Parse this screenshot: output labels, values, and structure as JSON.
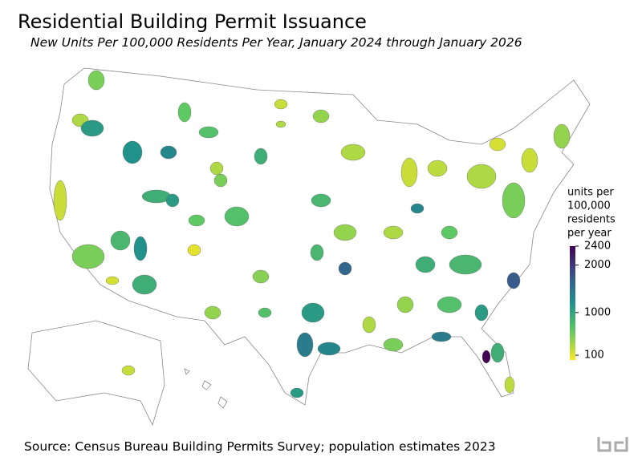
{
  "chart_data": {
    "type": "choropleth",
    "title": "Residential Building Permit Issuance",
    "subtitle": "New Units Per 100,000 Residents Per Year, January 2024 through January 2026",
    "source": "Source: Census Bureau Building Permits Survey; population estimates 2023",
    "colorbar_label": [
      "units per",
      "100,000",
      "residents",
      "per year"
    ],
    "colormap": "viridis_r",
    "clim": [
      0,
      2400
    ],
    "cticks": [
      100,
      1000,
      2000,
      2400
    ],
    "values": [
      500,
      300,
      1100,
      1200,
      1300,
      600,
      700,
      200,
      500,
      800,
      1200,
      900,
      150,
      900,
      1100,
      500,
      700,
      600,
      100,
      400,
      450,
      1100,
      1400,
      1300,
      1100,
      700,
      300,
      800,
      400,
      300,
      1300,
      200,
      250,
      600,
      300,
      500,
      200,
      400,
      150,
      900,
      800,
      1700,
      700,
      1100,
      900,
      2400,
      250,
      1400,
      500,
      300,
      400,
      1600,
      800,
      200,
      400,
      900,
      300,
      300,
      200
    ]
  }
}
